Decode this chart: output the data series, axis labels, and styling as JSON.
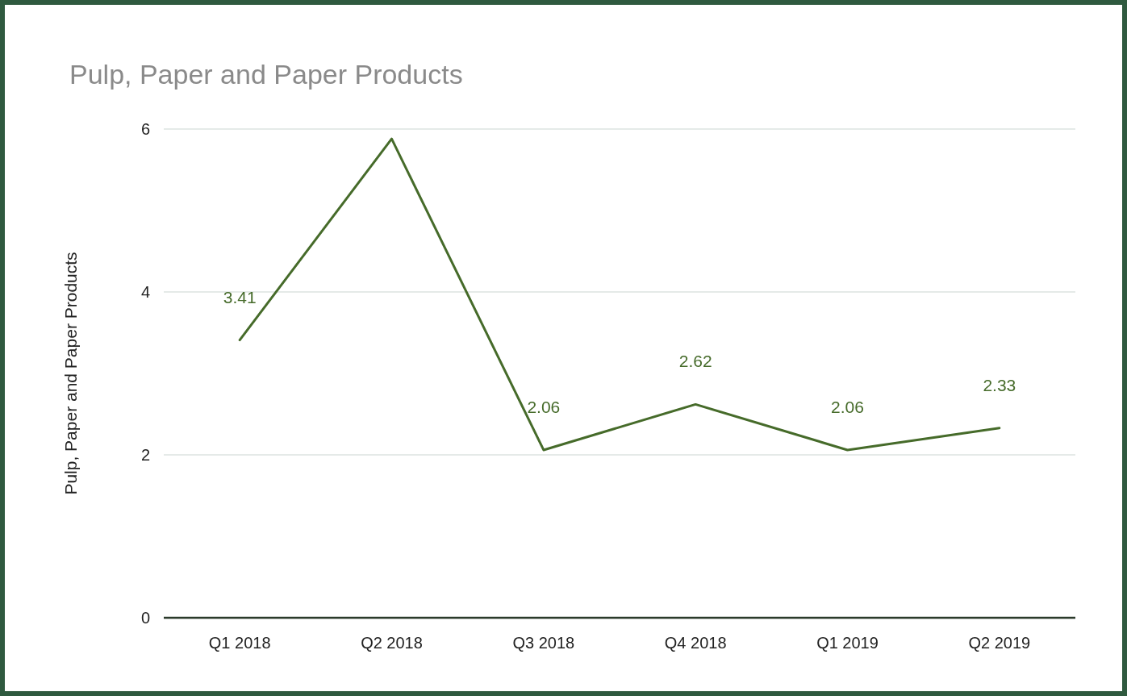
{
  "chart_data": {
    "type": "line",
    "title": "Pulp, Paper and Paper Products",
    "ylabel": "Pulp, Paper and Paper Products",
    "categories": [
      "Q1 2018",
      "Q2 2018",
      "Q3 2018",
      "Q4 2018",
      "Q1 2019",
      "Q2 2019"
    ],
    "values": [
      3.41,
      5.88,
      2.06,
      2.62,
      2.06,
      2.33
    ],
    "value_labels": [
      "3.41",
      null,
      "2.06",
      "2.62",
      "2.06",
      "2.33"
    ],
    "color": "#466b2a",
    "ylim": [
      0,
      6
    ],
    "yticks": [
      0,
      2,
      4,
      6
    ],
    "grid": "y"
  }
}
